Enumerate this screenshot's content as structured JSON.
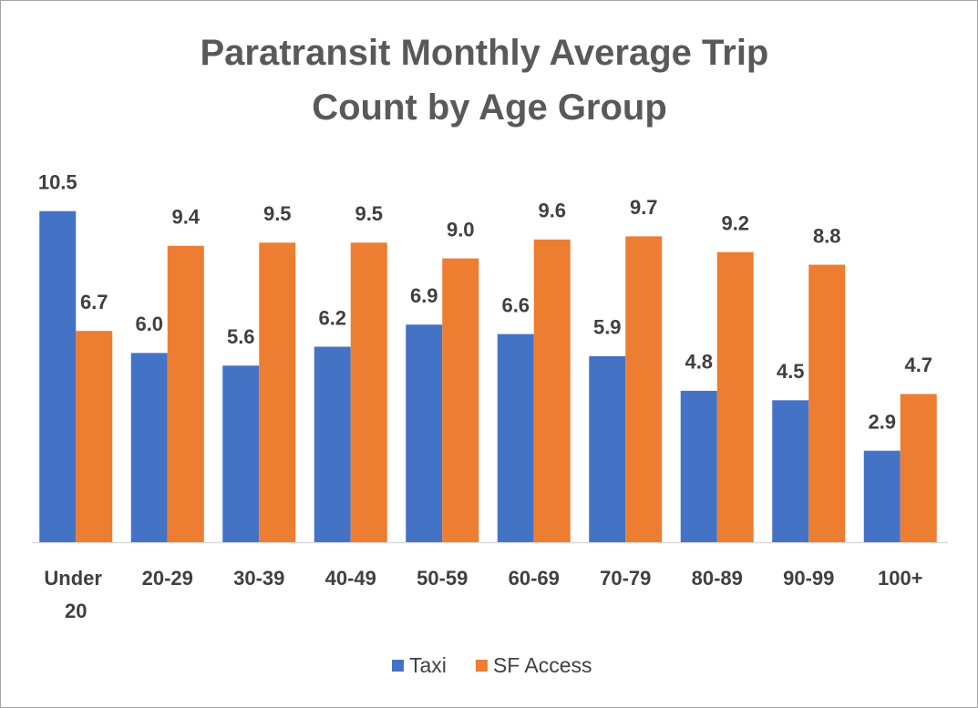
{
  "chart_data": {
    "type": "bar",
    "title": "Paratransit Monthly Average Trip Count by Age Group",
    "categories": [
      "Under 20",
      "20-29",
      "30-39",
      "40-49",
      "50-59",
      "60-69",
      "70-79",
      "80-89",
      "90-99",
      "100+"
    ],
    "series": [
      {
        "name": "Taxi",
        "color": "#4472c4",
        "values": [
          10.5,
          6.0,
          5.6,
          6.2,
          6.9,
          6.6,
          5.9,
          4.8,
          4.5,
          2.9
        ],
        "value_labels": [
          "10.5",
          "6.0",
          "5.6",
          "6.2",
          "6.9",
          "6.6",
          "5.9",
          "4.8",
          "4.5",
          "2.9"
        ]
      },
      {
        "name": "SF Access",
        "color": "#ed7d31",
        "values": [
          6.7,
          9.4,
          9.5,
          9.5,
          9.0,
          9.6,
          9.7,
          9.2,
          8.8,
          4.7
        ],
        "value_labels": [
          "6.7",
          "9.4",
          "9.5",
          "9.5",
          "9.0",
          "9.6",
          "9.7",
          "9.2",
          "8.8",
          "4.7"
        ]
      }
    ],
    "legend": "bottom"
  }
}
